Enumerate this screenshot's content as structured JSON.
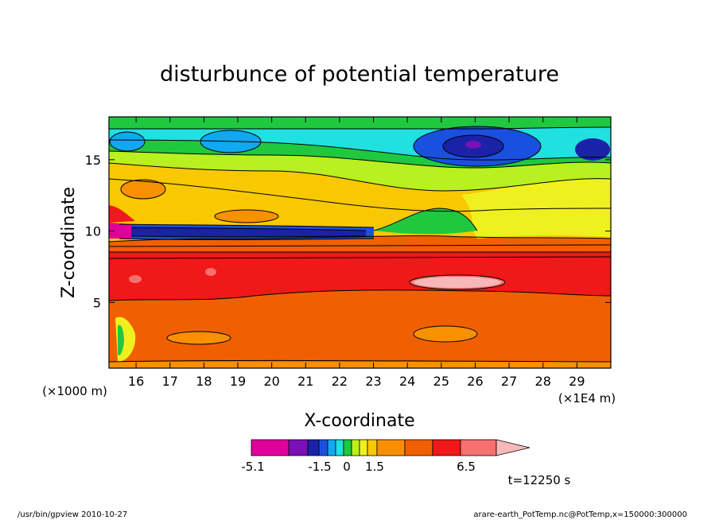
{
  "chart_data": {
    "type": "heatmap",
    "title": "disturbunce of potential temperature",
    "xlabel": "X-coordinate",
    "ylabel": "Z-coordinate",
    "x_unit": "(×1E4 m)",
    "y_unit": "(×1000 m)",
    "xlim": [
      15.2,
      30
    ],
    "ylim": [
      0.4,
      18
    ],
    "xticks": [
      16,
      17,
      18,
      19,
      20,
      21,
      22,
      23,
      24,
      25,
      26,
      27,
      28,
      29
    ],
    "yticks": [
      5,
      10,
      15
    ],
    "grid": false,
    "colorbar": {
      "labels": [
        "-5.1",
        "-1.5",
        "0",
        "1.5",
        "6.5"
      ],
      "colors": [
        "#e0009a",
        "#7a10b8",
        "#1a22a8",
        "#1a50e0",
        "#10a8f0",
        "#20e0e0",
        "#20c840",
        "#b8f020",
        "#f0f020",
        "#f8c800",
        "#f89000",
        "#f06000",
        "#f01818",
        "#f87070",
        "#f8b8b8"
      ]
    },
    "annotation": "t=12250 s"
  },
  "footer": {
    "left": "/usr/bin/gpview   2010-10-27",
    "right": "arare-earth_PotTemp.nc@PotTemp,x=150000:300000"
  }
}
